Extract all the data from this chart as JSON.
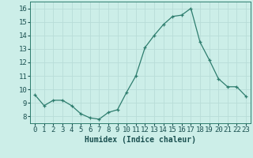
{
  "x": [
    0,
    1,
    2,
    3,
    4,
    5,
    6,
    7,
    8,
    9,
    10,
    11,
    12,
    13,
    14,
    15,
    16,
    17,
    18,
    19,
    20,
    21,
    22,
    23
  ],
  "y": [
    9.6,
    8.8,
    9.2,
    9.2,
    8.8,
    8.2,
    7.9,
    7.8,
    8.3,
    8.5,
    9.8,
    11.0,
    13.1,
    14.0,
    14.8,
    15.4,
    15.5,
    16.0,
    13.5,
    12.2,
    10.8,
    10.2,
    10.2,
    9.5
  ],
  "xlabel": "Humidex (Indice chaleur)",
  "bg_color": "#cceee8",
  "grid_color": "#b8ddd8",
  "line_color": "#2e7d6e",
  "marker_color": "#2e7d6e",
  "xlim": [
    -0.5,
    23.5
  ],
  "ylim": [
    7.5,
    16.5
  ],
  "yticks": [
    8,
    9,
    10,
    11,
    12,
    13,
    14,
    15,
    16
  ],
  "xticks": [
    0,
    1,
    2,
    3,
    4,
    5,
    6,
    7,
    8,
    9,
    10,
    11,
    12,
    13,
    14,
    15,
    16,
    17,
    18,
    19,
    20,
    21,
    22,
    23
  ],
  "xlabel_fontsize": 7,
  "tick_fontsize": 6.5
}
